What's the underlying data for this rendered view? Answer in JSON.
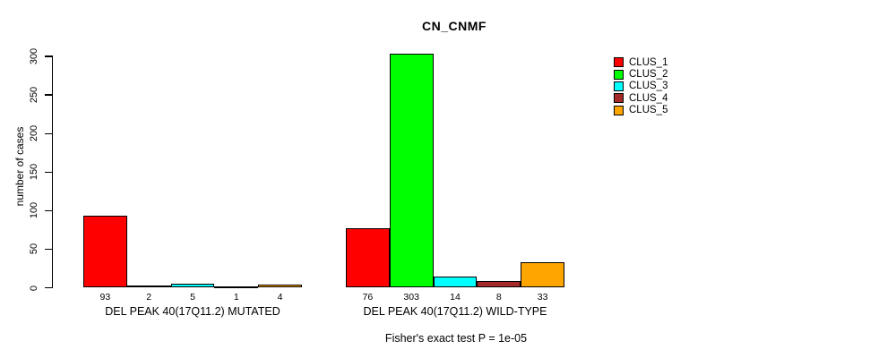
{
  "chart_data": {
    "type": "bar",
    "title": "CN_CNMF",
    "xlabel": "",
    "ylabel": "number of cases",
    "ylim": [
      0,
      300
    ],
    "yticks": [
      0,
      50,
      100,
      150,
      200,
      250,
      300
    ],
    "grid": false,
    "legend_position": "right",
    "categories": [
      "DEL PEAK 40(17Q11.2) MUTATED",
      "DEL PEAK 40(17Q11.2) WILD-TYPE"
    ],
    "series": [
      {
        "name": "CLUS_1",
        "color": "#FF0000",
        "values": [
          93,
          76
        ]
      },
      {
        "name": "CLUS_2",
        "color": "#00FF00",
        "values": [
          2,
          303
        ]
      },
      {
        "name": "CLUS_3",
        "color": "#00FFFF",
        "values": [
          5,
          14
        ]
      },
      {
        "name": "CLUS_4",
        "color": "#A52A2A",
        "values": [
          1,
          8
        ]
      },
      {
        "name": "CLUS_5",
        "color": "#FFA500",
        "values": [
          4,
          33
        ]
      }
    ],
    "bar_value_labels_shown": true,
    "annotation": "Fisher's exact test P = 1e-05"
  },
  "colors": {
    "axis": "#000000",
    "text": "#000000",
    "background": "#FFFFFF"
  }
}
